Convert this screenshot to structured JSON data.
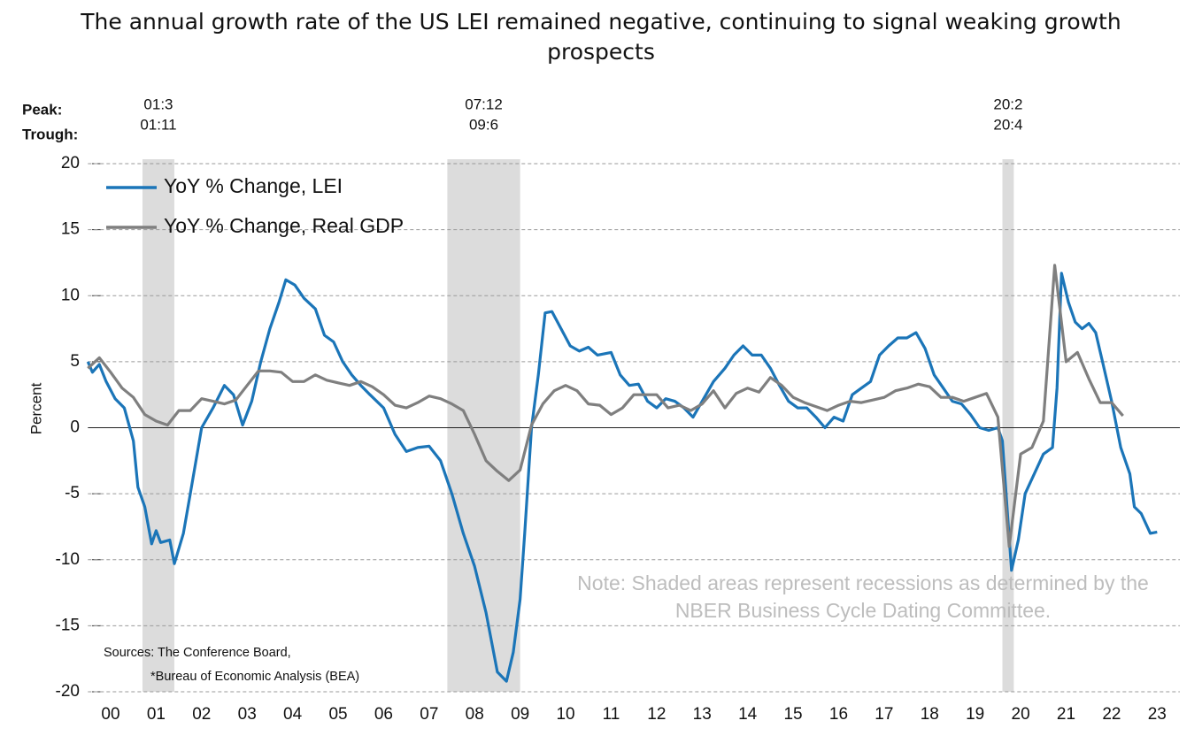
{
  "chart_data": {
    "type": "line",
    "title": "The annual growth rate of the US LEI remained negative, continuing to signal weaking growth prospects",
    "y_label": "Percent",
    "peak_label": "Peak:",
    "trough_label": "Trough:",
    "note": "Note: Shaded areas represent recessions as determined by the NBER Business Cycle Dating Committee.",
    "sources": [
      "Sources: The Conference Board,",
      "*Bureau of Economic Analysis (BEA)"
    ],
    "recessions": [
      {
        "peak": "01:3",
        "trough": "01:11",
        "start": 2001.2,
        "end": 2001.9
      },
      {
        "peak": "07:12",
        "trough": "09:6",
        "start": 2007.9,
        "end": 2009.5
      },
      {
        "peak": "20:2",
        "trough": "20:4",
        "start": 2020.1,
        "end": 2020.35
      }
    ],
    "xlim": [
      2000,
      2024
    ],
    "xticks": [
      {
        "value": 2000.5,
        "label": "00"
      },
      {
        "value": 2001.5,
        "label": "01"
      },
      {
        "value": 2002.5,
        "label": "02"
      },
      {
        "value": 2003.5,
        "label": "03"
      },
      {
        "value": 2004.5,
        "label": "04"
      },
      {
        "value": 2005.5,
        "label": "05"
      },
      {
        "value": 2006.5,
        "label": "06"
      },
      {
        "value": 2007.5,
        "label": "07"
      },
      {
        "value": 2008.5,
        "label": "08"
      },
      {
        "value": 2009.5,
        "label": "09"
      },
      {
        "value": 2010.5,
        "label": "10"
      },
      {
        "value": 2011.5,
        "label": "11"
      },
      {
        "value": 2012.5,
        "label": "12"
      },
      {
        "value": 2013.5,
        "label": "13"
      },
      {
        "value": 2014.5,
        "label": "14"
      },
      {
        "value": 2015.5,
        "label": "15"
      },
      {
        "value": 2016.5,
        "label": "16"
      },
      {
        "value": 2017.5,
        "label": "17"
      },
      {
        "value": 2018.5,
        "label": "18"
      },
      {
        "value": 2019.5,
        "label": "19"
      },
      {
        "value": 2020.5,
        "label": "20"
      },
      {
        "value": 2021.5,
        "label": "21"
      },
      {
        "value": 2022.5,
        "label": "22"
      },
      {
        "value": 2023.5,
        "label": "23"
      }
    ],
    "ylim": [
      -20,
      20
    ],
    "yticks": [
      20,
      15,
      10,
      5,
      0,
      -5,
      -10,
      -15,
      -20
    ],
    "grid": true,
    "legend": "upper left",
    "series": [
      {
        "name": "YoY % Change, LEI",
        "color": "#1b75b8",
        "x": [
          2000.0,
          2000.1,
          2000.25,
          2000.4,
          2000.6,
          2000.8,
          2001.0,
          2001.1,
          2001.25,
          2001.4,
          2001.5,
          2001.6,
          2001.8,
          2001.9,
          2002.1,
          2002.25,
          2002.4,
          2002.5,
          2002.75,
          2003.0,
          2003.2,
          2003.4,
          2003.6,
          2003.8,
          2004.0,
          2004.2,
          2004.35,
          2004.55,
          2004.75,
          2005.0,
          2005.2,
          2005.4,
          2005.6,
          2005.8,
          2006.0,
          2006.2,
          2006.5,
          2006.75,
          2007.0,
          2007.25,
          2007.5,
          2007.75,
          2008.0,
          2008.25,
          2008.5,
          2008.75,
          2009.0,
          2009.2,
          2009.35,
          2009.5,
          2009.6,
          2009.75,
          2009.9,
          2010.05,
          2010.2,
          2010.4,
          2010.6,
          2010.8,
          2011.0,
          2011.2,
          2011.5,
          2011.7,
          2011.9,
          2012.1,
          2012.3,
          2012.5,
          2012.7,
          2012.9,
          2013.1,
          2013.3,
          2013.5,
          2013.75,
          2014.0,
          2014.2,
          2014.4,
          2014.6,
          2014.8,
          2015.0,
          2015.2,
          2015.4,
          2015.6,
          2015.8,
          2016.0,
          2016.2,
          2016.4,
          2016.6,
          2016.8,
          2017.0,
          2017.2,
          2017.4,
          2017.6,
          2017.8,
          2018.0,
          2018.2,
          2018.4,
          2018.6,
          2018.8,
          2019.0,
          2019.2,
          2019.4,
          2019.6,
          2019.8,
          2020.0,
          2020.1,
          2020.2,
          2020.3,
          2020.45,
          2020.6,
          2020.8,
          2021.0,
          2021.2,
          2021.3,
          2021.4,
          2021.55,
          2021.7,
          2021.85,
          2022.0,
          2022.15,
          2022.3,
          2022.5,
          2022.7,
          2022.9,
          2023.0,
          2023.15,
          2023.35,
          2023.5
        ],
        "values": [
          5.0,
          4.2,
          4.8,
          3.5,
          2.2,
          1.5,
          -1,
          -4.5,
          -6,
          -8.8,
          -7.8,
          -8.7,
          -8.5,
          -10.3,
          -8,
          -5,
          -2,
          0,
          1.5,
          3.2,
          2.5,
          0.2,
          2,
          5,
          7.5,
          9.5,
          11.2,
          10.8,
          9.8,
          9.0,
          7,
          6.5,
          5,
          4,
          3.2,
          2.5,
          1.5,
          -0.5,
          -1.8,
          -1.5,
          -1.4,
          -2.5,
          -5,
          -8,
          -10.5,
          -14,
          -18.5,
          -19.2,
          -17,
          -13,
          -8,
          0,
          4,
          8.7,
          8.8,
          7.5,
          6.2,
          5.8,
          6.1,
          5.5,
          5.7,
          4,
          3.2,
          3.3,
          2.0,
          1.5,
          2.2,
          2.0,
          1.5,
          0.8,
          2.0,
          3.5,
          4.5,
          5.5,
          6.2,
          5.5,
          5.5,
          4.5,
          3.2,
          2.0,
          1.5,
          1.5,
          0.8,
          0.0,
          0.8,
          0.5,
          2.5,
          3.0,
          3.5,
          5.5,
          6.2,
          6.8,
          6.8,
          7.2,
          6.0,
          4.0,
          3.0,
          2.0,
          1.8,
          1.0,
          0.0,
          -0.2,
          0,
          -1.0,
          -6,
          -10.8,
          -8.5,
          -5,
          -3.5,
          -2,
          -1.5,
          3,
          11.7,
          9.5,
          8,
          7.5,
          7.9,
          7.2,
          5,
          2,
          -1.5,
          -3.5,
          -6,
          -6.5,
          -8,
          -7.9
        ]
      },
      {
        "name": "YoY % Change, Real GDP",
        "color": "#7f7f7f",
        "x": [
          2000.0,
          2000.25,
          2000.5,
          2000.75,
          2001.0,
          2001.25,
          2001.5,
          2001.75,
          2002.0,
          2002.25,
          2002.5,
          2002.75,
          2003.0,
          2003.25,
          2003.5,
          2003.75,
          2004.0,
          2004.25,
          2004.5,
          2004.75,
          2005.0,
          2005.25,
          2005.5,
          2005.75,
          2006.0,
          2006.25,
          2006.5,
          2006.75,
          2007.0,
          2007.25,
          2007.5,
          2007.75,
          2008.0,
          2008.25,
          2008.5,
          2008.75,
          2009.0,
          2009.25,
          2009.5,
          2009.75,
          2010.0,
          2010.25,
          2010.5,
          2010.75,
          2011.0,
          2011.25,
          2011.5,
          2011.75,
          2012.0,
          2012.25,
          2012.5,
          2012.75,
          2013.0,
          2013.25,
          2013.5,
          2013.75,
          2014.0,
          2014.25,
          2014.5,
          2014.75,
          2015.0,
          2015.25,
          2015.5,
          2015.75,
          2016.0,
          2016.25,
          2016.5,
          2016.75,
          2017.0,
          2017.25,
          2017.5,
          2017.75,
          2018.0,
          2018.25,
          2018.5,
          2018.75,
          2019.0,
          2019.25,
          2019.5,
          2019.75,
          2020.0,
          2020.25,
          2020.5,
          2020.75,
          2021.0,
          2021.25,
          2021.5,
          2021.75,
          2022.0,
          2022.25,
          2022.5,
          2022.75
        ],
        "values": [
          4.5,
          5.3,
          4.2,
          3.0,
          2.3,
          1.0,
          0.5,
          0.2,
          1.3,
          1.3,
          2.2,
          2.0,
          1.8,
          2.1,
          3.2,
          4.3,
          4.3,
          4.2,
          3.5,
          3.5,
          4.0,
          3.6,
          3.4,
          3.2,
          3.5,
          3.1,
          2.5,
          1.7,
          1.5,
          1.9,
          2.4,
          2.2,
          1.8,
          1.3,
          -0.5,
          -2.5,
          -3.3,
          -4.0,
          -3.2,
          0.2,
          1.8,
          2.8,
          3.2,
          2.8,
          1.8,
          1.7,
          1.0,
          1.5,
          2.5,
          2.5,
          2.5,
          1.5,
          1.7,
          1.3,
          1.8,
          2.8,
          1.5,
          2.6,
          3.0,
          2.7,
          3.8,
          3.2,
          2.3,
          1.9,
          1.6,
          1.3,
          1.7,
          2.0,
          1.9,
          2.1,
          2.3,
          2.8,
          3.0,
          3.3,
          3.1,
          2.3,
          2.3,
          2.0,
          2.3,
          2.6,
          0.8,
          -9.0,
          -2.0,
          -1.5,
          0.5,
          12.3,
          5.0,
          5.7,
          3.7,
          1.9,
          1.9,
          0.9
        ]
      }
    ]
  }
}
